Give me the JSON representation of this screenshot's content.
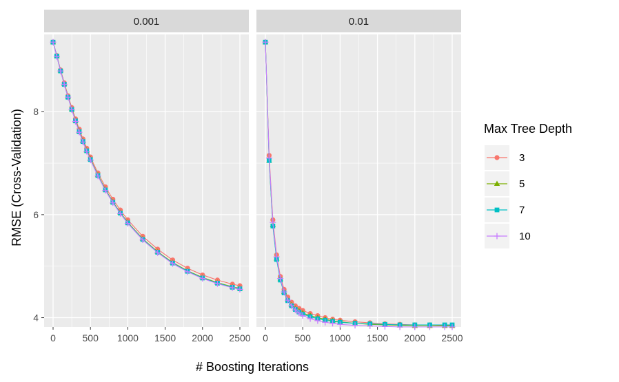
{
  "chart_data": {
    "type": "line",
    "xlabel": "# Boosting Iterations",
    "ylabel": "RMSE (Cross-Validation)",
    "xlim": [
      -120,
      2620
    ],
    "ylim": [
      3.82,
      9.5
    ],
    "x_ticks": [
      0,
      500,
      1000,
      1500,
      2000,
      2500
    ],
    "x_tick_labels": [
      "0",
      "500",
      "1000",
      "1500",
      "2000",
      "2500"
    ],
    "y_ticks": [
      4,
      6,
      8
    ],
    "y_tick_labels": [
      "4",
      "6",
      "8"
    ],
    "grid": true,
    "legend_position": "right",
    "legend_title": "Max Tree Depth",
    "x": [
      0,
      50,
      100,
      150,
      200,
      250,
      300,
      350,
      400,
      450,
      500,
      600,
      700,
      800,
      900,
      1000,
      1200,
      1400,
      1600,
      1800,
      2000,
      2200,
      2400,
      2500
    ],
    "facets": [
      {
        "label": "0.001",
        "series": [
          {
            "name": "3",
            "values": [
              9.35,
              9.09,
              8.81,
              8.56,
              8.31,
              8.08,
              7.86,
              7.66,
              7.47,
              7.29,
              7.12,
              6.81,
              6.54,
              6.3,
              6.09,
              5.9,
              5.58,
              5.33,
              5.12,
              4.96,
              4.83,
              4.73,
              4.65,
              4.62
            ]
          },
          {
            "name": "5",
            "values": [
              9.35,
              9.08,
              8.8,
              8.54,
              8.29,
              8.05,
              7.83,
              7.62,
              7.43,
              7.25,
              7.08,
              6.77,
              6.49,
              6.25,
              6.04,
              5.85,
              5.53,
              5.28,
              5.07,
              4.91,
              4.78,
              4.68,
              4.6,
              4.57
            ]
          },
          {
            "name": "7",
            "values": [
              9.35,
              9.08,
              8.79,
              8.53,
              8.28,
              8.04,
              7.82,
              7.61,
              7.42,
              7.24,
              7.07,
              6.76,
              6.48,
              6.24,
              6.03,
              5.84,
              5.52,
              5.27,
              5.06,
              4.9,
              4.77,
              4.67,
              4.59,
              4.56
            ]
          },
          {
            "name": "10",
            "values": [
              9.35,
              9.07,
              8.79,
              8.53,
              8.28,
              8.04,
              7.81,
              7.6,
              7.41,
              7.23,
              7.06,
              6.75,
              6.47,
              6.23,
              6.02,
              5.83,
              5.51,
              5.26,
              5.05,
              4.89,
              4.76,
              4.66,
              4.58,
              4.55
            ]
          }
        ]
      },
      {
        "label": "0.01",
        "series": [
          {
            "name": "3",
            "values": [
              9.35,
              7.15,
              5.9,
              5.22,
              4.8,
              4.55,
              4.4,
              4.3,
              4.23,
              4.18,
              4.14,
              4.08,
              4.04,
              4.0,
              3.97,
              3.95,
              3.92,
              3.9,
              3.88,
              3.87,
              3.86,
              3.86,
              3.85,
              3.85
            ]
          },
          {
            "name": "5",
            "values": [
              9.35,
              7.05,
              5.8,
              5.15,
              4.75,
              4.5,
              4.35,
              4.25,
              4.18,
              4.13,
              4.09,
              4.04,
              4.0,
              3.97,
              3.94,
              3.92,
              3.89,
              3.87,
              3.86,
              3.85,
              3.84,
              3.84,
              3.84,
              3.84
            ]
          },
          {
            "name": "7",
            "values": [
              9.35,
              7.05,
              5.78,
              5.13,
              4.73,
              4.48,
              4.33,
              4.23,
              4.16,
              4.11,
              4.07,
              4.02,
              3.98,
              3.95,
              3.93,
              3.91,
              3.89,
              3.88,
              3.87,
              3.86,
              3.86,
              3.86,
              3.86,
              3.86
            ]
          },
          {
            "name": "10",
            "values": [
              9.35,
              7.1,
              5.85,
              5.18,
              4.76,
              4.5,
              4.34,
              4.23,
              4.15,
              4.09,
              4.04,
              3.98,
              3.94,
              3.91,
              3.89,
              3.87,
              3.85,
              3.84,
              3.83,
              3.82,
              3.82,
              3.82,
              3.82,
              3.82
            ]
          }
        ]
      }
    ],
    "colors": {
      "3": "#F8766D",
      "5": "#7CAE00",
      "7": "#00BFC4",
      "10": "#C77CFF"
    },
    "markers": {
      "3": "circle",
      "5": "triangle",
      "7": "square",
      "10": "plus"
    },
    "panel_background": "#EBEBEB",
    "strip_background": "#D9D9D9",
    "grid_color": "#FFFFFF"
  }
}
